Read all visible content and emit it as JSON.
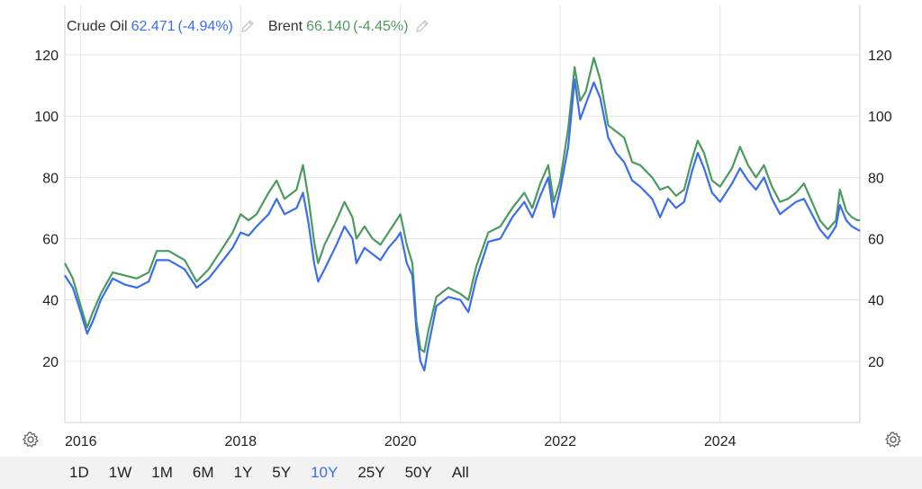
{
  "legend": {
    "crude": {
      "name": "Crude Oil",
      "value": "62.471",
      "change": "(-4.94%)"
    },
    "brent": {
      "name": "Brent",
      "value": "66.140",
      "change": "(-4.45%)"
    }
  },
  "icons": {
    "edit": "pencil-icon",
    "settings": "gear-icon"
  },
  "range_buttons": [
    "1D",
    "1W",
    "1M",
    "6M",
    "1Y",
    "5Y",
    "10Y",
    "25Y",
    "50Y",
    "All"
  ],
  "active_range": "10Y",
  "colors": {
    "crude": "#3a6df0",
    "brent": "#4c9a5e",
    "grid": "#e6e6e6",
    "active": "#3a6df0"
  },
  "chart_data": {
    "type": "line",
    "title": "",
    "xlabel": "",
    "ylabel": "",
    "x_ticks": [
      "2016",
      "2018",
      "2020",
      "2022",
      "2024"
    ],
    "y_ticks": [
      20,
      40,
      60,
      80,
      100,
      120
    ],
    "xlim": [
      2015.8,
      2025.75
    ],
    "ylim": [
      0,
      125
    ],
    "grid": true,
    "legend_position": "top-left",
    "series": [
      {
        "name": "Crude Oil",
        "color": "#3a6df0",
        "points": [
          [
            2015.8,
            48
          ],
          [
            2015.9,
            44
          ],
          [
            2016.0,
            36
          ],
          [
            2016.08,
            29
          ],
          [
            2016.15,
            33
          ],
          [
            2016.25,
            40
          ],
          [
            2016.4,
            47
          ],
          [
            2016.55,
            45
          ],
          [
            2016.7,
            44
          ],
          [
            2016.85,
            46
          ],
          [
            2016.95,
            53
          ],
          [
            2017.1,
            53
          ],
          [
            2017.3,
            50
          ],
          [
            2017.45,
            44
          ],
          [
            2017.6,
            47
          ],
          [
            2017.75,
            52
          ],
          [
            2017.9,
            57
          ],
          [
            2018.0,
            62
          ],
          [
            2018.1,
            61
          ],
          [
            2018.2,
            64
          ],
          [
            2018.35,
            68
          ],
          [
            2018.45,
            73
          ],
          [
            2018.55,
            68
          ],
          [
            2018.7,
            70
          ],
          [
            2018.78,
            75
          ],
          [
            2018.85,
            65
          ],
          [
            2018.92,
            52
          ],
          [
            2018.97,
            46
          ],
          [
            2019.05,
            50
          ],
          [
            2019.2,
            58
          ],
          [
            2019.3,
            64
          ],
          [
            2019.4,
            60
          ],
          [
            2019.45,
            52
          ],
          [
            2019.55,
            57
          ],
          [
            2019.65,
            55
          ],
          [
            2019.75,
            53
          ],
          [
            2019.85,
            57
          ],
          [
            2019.95,
            60
          ],
          [
            2020.0,
            62
          ],
          [
            2020.08,
            52
          ],
          [
            2020.15,
            48
          ],
          [
            2020.2,
            30
          ],
          [
            2020.25,
            20
          ],
          [
            2020.3,
            17
          ],
          [
            2020.35,
            25
          ],
          [
            2020.45,
            38
          ],
          [
            2020.6,
            41
          ],
          [
            2020.75,
            40
          ],
          [
            2020.85,
            36
          ],
          [
            2020.95,
            47
          ],
          [
            2021.1,
            59
          ],
          [
            2021.25,
            60
          ],
          [
            2021.4,
            67
          ],
          [
            2021.55,
            72
          ],
          [
            2021.65,
            67
          ],
          [
            2021.75,
            74
          ],
          [
            2021.85,
            80
          ],
          [
            2021.92,
            67
          ],
          [
            2022.0,
            76
          ],
          [
            2022.1,
            90
          ],
          [
            2022.18,
            112
          ],
          [
            2022.25,
            99
          ],
          [
            2022.32,
            104
          ],
          [
            2022.42,
            111
          ],
          [
            2022.5,
            106
          ],
          [
            2022.6,
            93
          ],
          [
            2022.7,
            88
          ],
          [
            2022.8,
            85
          ],
          [
            2022.9,
            79
          ],
          [
            2023.0,
            77
          ],
          [
            2023.15,
            73
          ],
          [
            2023.25,
            67
          ],
          [
            2023.35,
            73
          ],
          [
            2023.45,
            70
          ],
          [
            2023.55,
            72
          ],
          [
            2023.65,
            82
          ],
          [
            2023.72,
            88
          ],
          [
            2023.8,
            83
          ],
          [
            2023.9,
            75
          ],
          [
            2024.0,
            72
          ],
          [
            2024.15,
            78
          ],
          [
            2024.25,
            83
          ],
          [
            2024.35,
            79
          ],
          [
            2024.45,
            76
          ],
          [
            2024.55,
            80
          ],
          [
            2024.65,
            73
          ],
          [
            2024.75,
            68
          ],
          [
            2024.85,
            70
          ],
          [
            2024.95,
            72
          ],
          [
            2025.05,
            73
          ],
          [
            2025.15,
            68
          ],
          [
            2025.25,
            63
          ],
          [
            2025.35,
            60
          ],
          [
            2025.45,
            64
          ],
          [
            2025.5,
            71
          ],
          [
            2025.58,
            66
          ],
          [
            2025.65,
            64
          ],
          [
            2025.72,
            63
          ],
          [
            2025.75,
            62.5
          ]
        ]
      },
      {
        "name": "Brent",
        "color": "#4c9a5e",
        "points": [
          [
            2015.8,
            52
          ],
          [
            2015.9,
            47
          ],
          [
            2016.0,
            38
          ],
          [
            2016.08,
            31
          ],
          [
            2016.15,
            36
          ],
          [
            2016.25,
            42
          ],
          [
            2016.4,
            49
          ],
          [
            2016.55,
            48
          ],
          [
            2016.7,
            47
          ],
          [
            2016.85,
            49
          ],
          [
            2016.95,
            56
          ],
          [
            2017.1,
            56
          ],
          [
            2017.3,
            53
          ],
          [
            2017.45,
            46
          ],
          [
            2017.6,
            50
          ],
          [
            2017.75,
            56
          ],
          [
            2017.9,
            62
          ],
          [
            2018.0,
            68
          ],
          [
            2018.1,
            66
          ],
          [
            2018.2,
            68
          ],
          [
            2018.35,
            75
          ],
          [
            2018.45,
            79
          ],
          [
            2018.55,
            73
          ],
          [
            2018.7,
            76
          ],
          [
            2018.78,
            84
          ],
          [
            2018.85,
            73
          ],
          [
            2018.92,
            59
          ],
          [
            2018.97,
            52
          ],
          [
            2019.05,
            58
          ],
          [
            2019.2,
            66
          ],
          [
            2019.3,
            72
          ],
          [
            2019.4,
            67
          ],
          [
            2019.45,
            60
          ],
          [
            2019.55,
            64
          ],
          [
            2019.65,
            60
          ],
          [
            2019.75,
            58
          ],
          [
            2019.85,
            62
          ],
          [
            2019.95,
            66
          ],
          [
            2020.0,
            68
          ],
          [
            2020.08,
            58
          ],
          [
            2020.15,
            52
          ],
          [
            2020.2,
            33
          ],
          [
            2020.25,
            24
          ],
          [
            2020.3,
            23
          ],
          [
            2020.35,
            30
          ],
          [
            2020.45,
            41
          ],
          [
            2020.6,
            44
          ],
          [
            2020.75,
            42
          ],
          [
            2020.85,
            40
          ],
          [
            2020.95,
            51
          ],
          [
            2021.1,
            62
          ],
          [
            2021.25,
            64
          ],
          [
            2021.4,
            70
          ],
          [
            2021.55,
            75
          ],
          [
            2021.65,
            70
          ],
          [
            2021.75,
            78
          ],
          [
            2021.85,
            84
          ],
          [
            2021.92,
            72
          ],
          [
            2022.0,
            79
          ],
          [
            2022.1,
            96
          ],
          [
            2022.18,
            116
          ],
          [
            2022.25,
            105
          ],
          [
            2022.32,
            108
          ],
          [
            2022.42,
            119
          ],
          [
            2022.5,
            112
          ],
          [
            2022.6,
            97
          ],
          [
            2022.7,
            95
          ],
          [
            2022.8,
            93
          ],
          [
            2022.9,
            85
          ],
          [
            2023.0,
            84
          ],
          [
            2023.15,
            80
          ],
          [
            2023.25,
            76
          ],
          [
            2023.35,
            77
          ],
          [
            2023.45,
            74
          ],
          [
            2023.55,
            76
          ],
          [
            2023.65,
            86
          ],
          [
            2023.72,
            92
          ],
          [
            2023.8,
            88
          ],
          [
            2023.9,
            79
          ],
          [
            2024.0,
            77
          ],
          [
            2024.15,
            83
          ],
          [
            2024.25,
            90
          ],
          [
            2024.35,
            84
          ],
          [
            2024.45,
            80
          ],
          [
            2024.55,
            84
          ],
          [
            2024.65,
            77
          ],
          [
            2024.75,
            72
          ],
          [
            2024.85,
            73
          ],
          [
            2024.95,
            75
          ],
          [
            2025.05,
            78
          ],
          [
            2025.15,
            72
          ],
          [
            2025.25,
            66
          ],
          [
            2025.35,
            63
          ],
          [
            2025.45,
            66
          ],
          [
            2025.5,
            76
          ],
          [
            2025.58,
            69
          ],
          [
            2025.65,
            67
          ],
          [
            2025.72,
            66
          ],
          [
            2025.75,
            66.1
          ]
        ]
      }
    ]
  }
}
